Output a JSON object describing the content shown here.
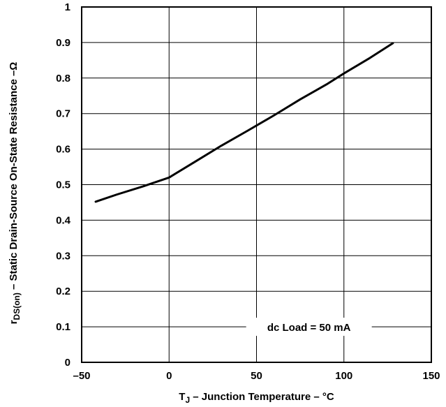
{
  "chart_data": {
    "type": "line",
    "xlabel": {
      "main": "T",
      "sub": "J",
      "rest": " – Junction Temperature – °C"
    },
    "ylabel": {
      "main": "r",
      "sub": "DS(on)",
      "rest": " – Static Drain-Source On-State Resistance –Ω"
    },
    "xlim": [
      -50,
      150
    ],
    "ylim": [
      0,
      1
    ],
    "x_ticks": [
      -50,
      0,
      50,
      100,
      150
    ],
    "x_tick_labels": [
      "–50",
      "0",
      "50",
      "100",
      "150"
    ],
    "y_ticks": [
      0,
      0.1,
      0.2,
      0.3,
      0.4,
      0.5,
      0.6,
      0.7,
      0.8,
      0.9,
      1
    ],
    "y_tick_labels": [
      "0",
      "0.1",
      "0.2",
      "0.3",
      "0.4",
      "0.5",
      "0.6",
      "0.7",
      "0.8",
      "0.9",
      "1"
    ],
    "grid": true,
    "annotation": "dc Load = 50 mA",
    "series": [
      {
        "x": [
          -42,
          -30,
          -15,
          0,
          15,
          30,
          45,
          60,
          75,
          90,
          100,
          115,
          128
        ],
        "y": [
          0.452,
          0.472,
          0.495,
          0.52,
          0.565,
          0.61,
          0.652,
          0.695,
          0.74,
          0.782,
          0.813,
          0.857,
          0.898
        ]
      }
    ]
  }
}
